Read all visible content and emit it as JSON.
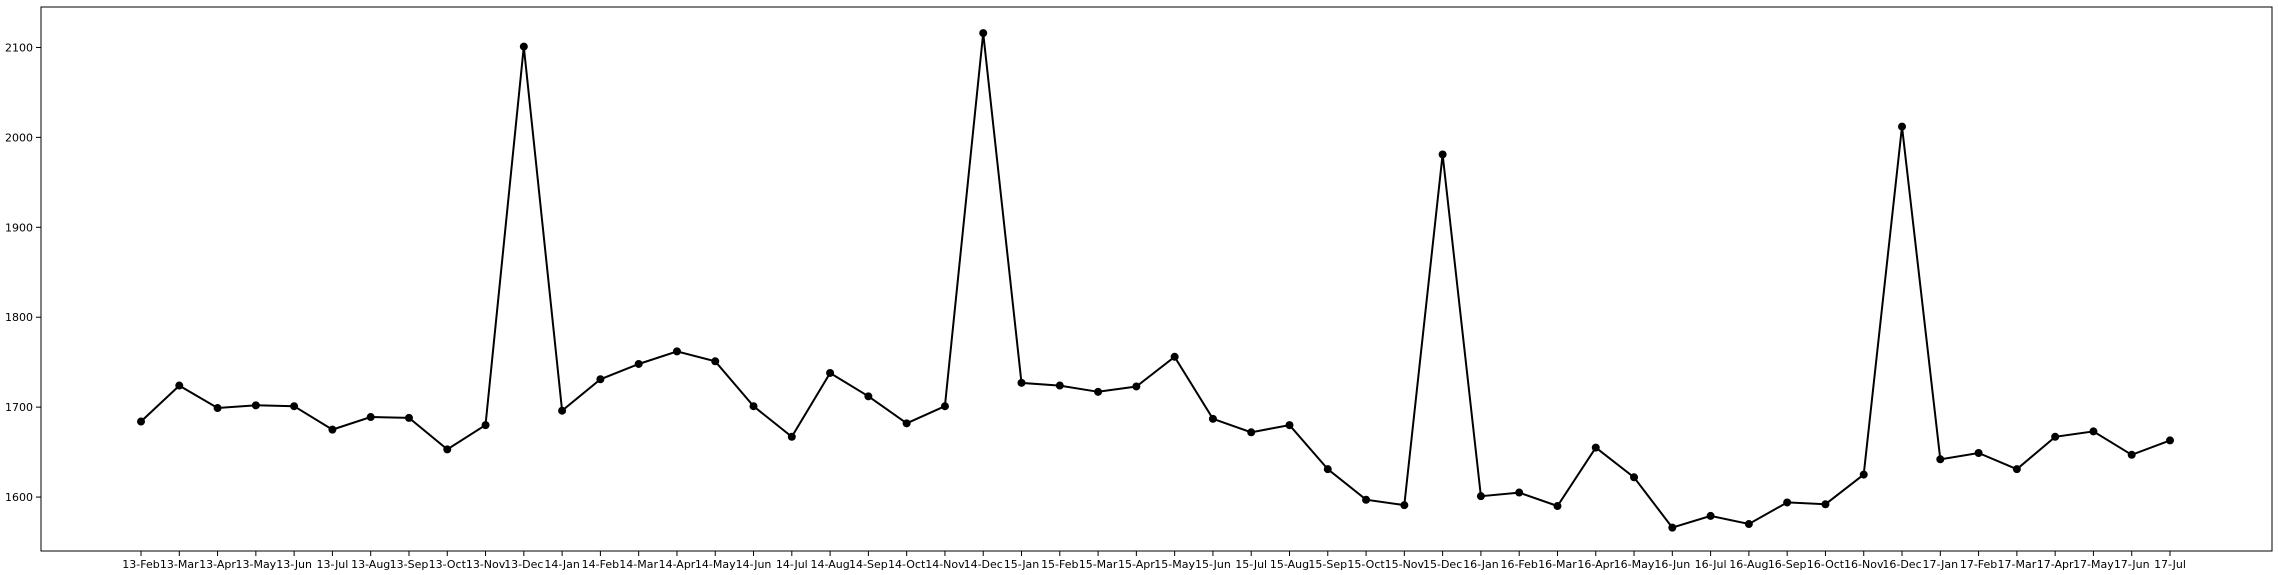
{
  "chart_data": {
    "type": "line",
    "title": "",
    "xlabel": "",
    "ylabel": "",
    "ylim": [
      1540,
      2145
    ],
    "yticks": [
      1600,
      1700,
      1800,
      1900,
      2000,
      2100
    ],
    "grid": false,
    "line_color": "#000000",
    "marker_color": "#000000",
    "categories": [
      "13-Feb",
      "13-Mar",
      "13-Apr",
      "13-May",
      "13-Jun",
      "13-Jul",
      "13-Aug",
      "13-Sep",
      "13-Oct",
      "13-Nov",
      "13-Dec",
      "14-Jan",
      "14-Feb",
      "14-Mar",
      "14-Apr",
      "14-May",
      "14-Jun",
      "14-Jul",
      "14-Aug",
      "14-Sep",
      "14-Oct",
      "14-Nov",
      "14-Dec",
      "15-Jan",
      "15-Feb",
      "15-Mar",
      "15-Apr",
      "15-May",
      "15-Jun",
      "15-Jul",
      "15-Aug",
      "15-Sep",
      "15-Oct",
      "15-Nov",
      "15-Dec",
      "16-Jan",
      "16-Feb",
      "16-Mar",
      "16-Apr",
      "16-May",
      "16-Jun",
      "16-Jul",
      "16-Aug",
      "16-Sep",
      "16-Oct",
      "16-Nov",
      "16-Dec",
      "17-Jan",
      "17-Feb",
      "17-Mar",
      "17-Apr",
      "17-May",
      "17-Jun",
      "17-Jul"
    ],
    "series": [
      {
        "values": [
          1684,
          1724,
          1699,
          1702,
          1701,
          1675,
          1689,
          1688,
          1653,
          1680,
          2101,
          1696,
          1731,
          1748,
          1762,
          1751,
          1701,
          1667,
          1738,
          1712,
          1682,
          1701,
          2116,
          1727,
          1724,
          1717,
          1723,
          1756,
          1687,
          1672,
          1680,
          1631,
          1597,
          1591,
          1981,
          1601,
          1605,
          1590,
          1655,
          1622,
          1566,
          1579,
          1570,
          1594,
          1592,
          1625,
          2012,
          1642,
          1649,
          1631,
          1667,
          1673,
          1647,
          1663
        ]
      }
    ]
  }
}
